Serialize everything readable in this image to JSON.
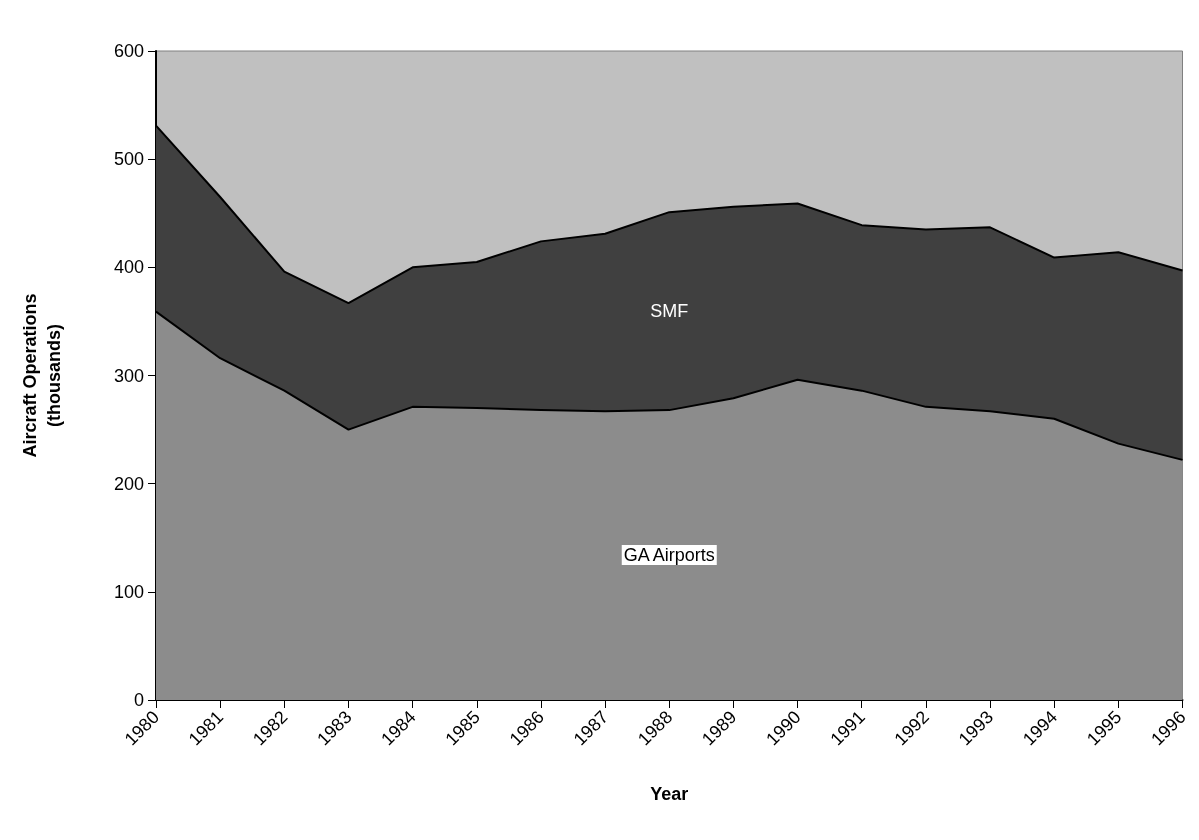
{
  "chart_data": {
    "type": "area",
    "stacked": true,
    "xlabel": "Year",
    "ylabel": "Aircraft Operations\n(thousands)",
    "categories": [
      "1980",
      "1981",
      "1982",
      "1983",
      "1984",
      "1985",
      "1986",
      "1987",
      "1988",
      "1989",
      "1990",
      "1991",
      "1992",
      "1993",
      "1994",
      "1995",
      "1996"
    ],
    "series": [
      {
        "name": "GA Airports",
        "color": "#8c8c8c",
        "values": [
          359,
          316,
          286,
          250,
          271,
          270,
          268,
          267,
          268,
          279,
          296,
          286,
          271,
          267,
          260,
          237,
          222
        ]
      },
      {
        "name": "SMF",
        "color": "#404040",
        "values": [
          172,
          149,
          110,
          117,
          129,
          135,
          156,
          164,
          183,
          177,
          163,
          153,
          164,
          170,
          149,
          177,
          175
        ]
      }
    ],
    "ylim": [
      0,
      600
    ],
    "yticks": [
      0,
      100,
      200,
      300,
      400,
      500,
      600
    ],
    "grid": false,
    "legend": false
  }
}
